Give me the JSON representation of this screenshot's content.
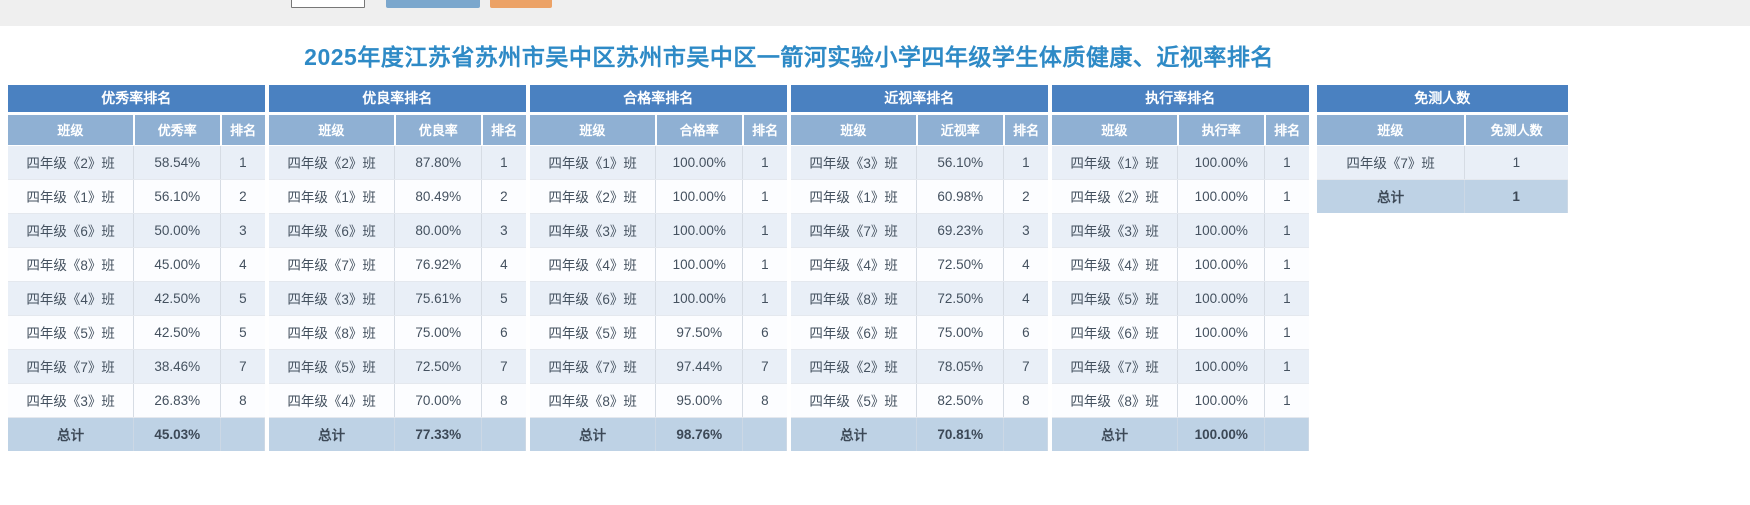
{
  "title": "2025年度江苏省苏州市吴中区苏州市吴中区一箭河实验小学四年级学生体质健康、近视率排名",
  "colors": {
    "topbar-bg": "#efefef",
    "btn-blue": "#7ba7cd",
    "btn-orange": "#eca266",
    "title-color": "#2e8ac6",
    "tbl-title-bg": "#4a81c1",
    "tbl-head-bg": "#8fb0d3",
    "row-odd": "#e9eff7",
    "row-even": "#fcfdff",
    "row-total": "#bed2e5",
    "cell-text": "#44515f"
  },
  "tables": [
    {
      "key": "excellent-rate",
      "title": "优秀率排名",
      "columns": [
        "班级",
        "优秀率",
        "排名"
      ],
      "rows": [
        [
          "四年级《2》班",
          "58.54%",
          "1"
        ],
        [
          "四年级《1》班",
          "56.10%",
          "2"
        ],
        [
          "四年级《6》班",
          "50.00%",
          "3"
        ],
        [
          "四年级《8》班",
          "45.00%",
          "4"
        ],
        [
          "四年级《4》班",
          "42.50%",
          "5"
        ],
        [
          "四年级《5》班",
          "42.50%",
          "5"
        ],
        [
          "四年级《7》班",
          "38.46%",
          "7"
        ],
        [
          "四年级《3》班",
          "26.83%",
          "8"
        ]
      ],
      "total": [
        "总计",
        "45.03%",
        ""
      ]
    },
    {
      "key": "good-rate",
      "title": "优良率排名",
      "columns": [
        "班级",
        "优良率",
        "排名"
      ],
      "rows": [
        [
          "四年级《2》班",
          "87.80%",
          "1"
        ],
        [
          "四年级《1》班",
          "80.49%",
          "2"
        ],
        [
          "四年级《6》班",
          "80.00%",
          "3"
        ],
        [
          "四年级《7》班",
          "76.92%",
          "4"
        ],
        [
          "四年级《3》班",
          "75.61%",
          "5"
        ],
        [
          "四年级《8》班",
          "75.00%",
          "6"
        ],
        [
          "四年级《5》班",
          "72.50%",
          "7"
        ],
        [
          "四年级《4》班",
          "70.00%",
          "8"
        ]
      ],
      "total": [
        "总计",
        "77.33%",
        ""
      ]
    },
    {
      "key": "pass-rate",
      "title": "合格率排名",
      "columns": [
        "班级",
        "合格率",
        "排名"
      ],
      "rows": [
        [
          "四年级《1》班",
          "100.00%",
          "1"
        ],
        [
          "四年级《2》班",
          "100.00%",
          "1"
        ],
        [
          "四年级《3》班",
          "100.00%",
          "1"
        ],
        [
          "四年级《4》班",
          "100.00%",
          "1"
        ],
        [
          "四年级《6》班",
          "100.00%",
          "1"
        ],
        [
          "四年级《5》班",
          "97.50%",
          "6"
        ],
        [
          "四年级《7》班",
          "97.44%",
          "7"
        ],
        [
          "四年级《8》班",
          "95.00%",
          "8"
        ]
      ],
      "total": [
        "总计",
        "98.76%",
        ""
      ]
    },
    {
      "key": "myopia-rate",
      "title": "近视率排名",
      "columns": [
        "班级",
        "近视率",
        "排名"
      ],
      "rows": [
        [
          "四年级《3》班",
          "56.10%",
          "1"
        ],
        [
          "四年级《1》班",
          "60.98%",
          "2"
        ],
        [
          "四年级《7》班",
          "69.23%",
          "3"
        ],
        [
          "四年级《4》班",
          "72.50%",
          "4"
        ],
        [
          "四年级《8》班",
          "72.50%",
          "4"
        ],
        [
          "四年级《6》班",
          "75.00%",
          "6"
        ],
        [
          "四年级《2》班",
          "78.05%",
          "7"
        ],
        [
          "四年级《5》班",
          "82.50%",
          "8"
        ]
      ],
      "total": [
        "总计",
        "70.81%",
        ""
      ]
    },
    {
      "key": "execution-rate",
      "title": "执行率排名",
      "columns": [
        "班级",
        "执行率",
        "排名"
      ],
      "rows": [
        [
          "四年级《1》班",
          "100.00%",
          "1"
        ],
        [
          "四年级《2》班",
          "100.00%",
          "1"
        ],
        [
          "四年级《3》班",
          "100.00%",
          "1"
        ],
        [
          "四年级《4》班",
          "100.00%",
          "1"
        ],
        [
          "四年级《5》班",
          "100.00%",
          "1"
        ],
        [
          "四年级《6》班",
          "100.00%",
          "1"
        ],
        [
          "四年级《7》班",
          "100.00%",
          "1"
        ],
        [
          "四年级《8》班",
          "100.00%",
          "1"
        ]
      ],
      "total": [
        "总计",
        "100.00%",
        ""
      ]
    },
    {
      "key": "exempted-count",
      "title": "免测人数",
      "columns": [
        "班级",
        "免测人数"
      ],
      "rows": [
        [
          "四年级《7》班",
          "1"
        ]
      ],
      "total": [
        "总计",
        "1"
      ]
    }
  ]
}
